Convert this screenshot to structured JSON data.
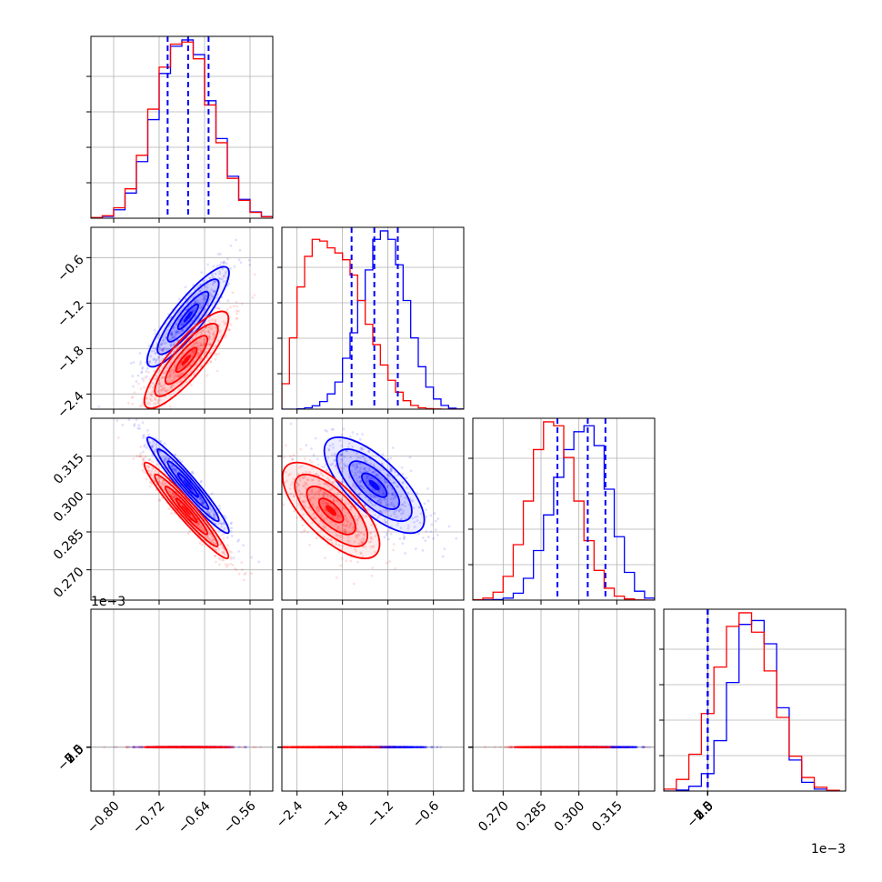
{
  "colors": {
    "series_a": "#0000ff",
    "series_b": "#ff0000",
    "grid": "#b0b0b0",
    "axes": "#000000"
  },
  "chart_data": {
    "type": "corner",
    "description_grid": "4x4 lower-triangular corner plot: 1D histograms on diagonal, 2D scatter+density contours below",
    "parameters": [
      {
        "id": "p0",
        "range": [
          -0.84,
          -0.52
        ],
        "ticks": [
          -0.8,
          -0.72,
          -0.64,
          -0.56
        ],
        "tick_labels": [
          "−0.80",
          "−0.72",
          "−0.64",
          "−0.56"
        ]
      },
      {
        "id": "p1",
        "range": [
          -2.6,
          -0.2
        ],
        "ticks": [
          -2.4,
          -1.8,
          -1.2,
          -0.6
        ],
        "tick_labels": [
          "−2.4",
          "−1.8",
          "−1.2",
          "−0.6"
        ]
      },
      {
        "id": "p2",
        "range": [
          0.258,
          0.33
        ],
        "ticks": [
          0.27,
          0.285,
          0.3,
          0.315
        ],
        "tick_labels": [
          "0.270",
          "0.285",
          "0.300",
          "0.315"
        ]
      },
      {
        "id": "p3",
        "range": [
          -2.8,
          8.8
        ],
        "ticks": [
          -2.5,
          0.0,
          2.5,
          5.0,
          7.5
        ],
        "tick_labels": [
          "−2.5",
          "0.0",
          "2.5",
          "5.0",
          "7.5"
        ],
        "offset_label": "1e−3",
        "scale": 0.001
      }
    ],
    "series": [
      {
        "name": "",
        "color": "#0000ff",
        "means": [
          -0.669,
          -1.38,
          0.3035,
          3.5
        ],
        "sds": [
          0.036,
          0.33,
          0.0095,
          1.1
        ],
        "correlations": {
          "0_1": 0.88,
          "0_2": -0.96,
          "1_2": -0.72,
          "0_3": -0.3,
          "1_3": -0.55,
          "2_3": 0.45
        },
        "quantiles": [
          [
            -0.705,
            -0.669,
            -0.633
          ],
          [
            -1.68,
            -1.38,
            -1.07
          ],
          [
            0.2915,
            0.3035,
            0.3105
          ],
          [
            2.55,
            3.5,
            4.45
          ]
        ]
      },
      {
        "name": "",
        "color": "#ff0000",
        "means": [
          -0.672,
          -1.95,
          0.2935,
          2.7
        ],
        "sds": [
          0.037,
          0.32,
          0.0095,
          1.4
        ],
        "correlations": {
          "0_1": 0.85,
          "0_2": -0.96,
          "1_2": -0.7,
          "0_3": -0.35,
          "1_3": 0.35,
          "2_3": 0.3
        },
        "quantiles": null
      }
    ],
    "histograms": {
      "p0": {
        "bin_edges": [
          -0.84,
          -0.82,
          -0.8,
          -0.78,
          -0.76,
          -0.74,
          -0.72,
          -0.7,
          -0.68,
          -0.66,
          -0.64,
          -0.62,
          -0.6,
          -0.58,
          -0.56,
          -0.54,
          -0.52
        ],
        "series_a": [
          2,
          9,
          40,
          120,
          270,
          470,
          690,
          820,
          850,
          780,
          560,
          380,
          200,
          90,
          30,
          8
        ],
        "series_b": [
          3,
          12,
          50,
          140,
          300,
          520,
          720,
          830,
          840,
          760,
          540,
          360,
          190,
          85,
          28,
          7
        ]
      },
      "p1": {
        "bin_edges": [
          -2.6,
          -2.5,
          -2.4,
          -2.3,
          -2.2,
          -2.1,
          -2.0,
          -1.9,
          -1.8,
          -1.7,
          -1.6,
          -1.5,
          -1.4,
          -1.3,
          -1.2,
          -1.1,
          -1.0,
          -0.9,
          -0.8,
          -0.7,
          -0.6,
          -0.5,
          -0.4,
          -0.3,
          -0.2
        ],
        "series_a": [
          0,
          0,
          2,
          8,
          20,
          45,
          90,
          160,
          300,
          450,
          640,
          820,
          1000,
          1050,
          1000,
          850,
          640,
          420,
          250,
          130,
          60,
          22,
          6,
          1
        ],
        "series_b": [
          150,
          420,
          720,
          900,
          1000,
          990,
          950,
          920,
          880,
          790,
          640,
          500,
          380,
          260,
          170,
          100,
          50,
          22,
          8,
          3,
          1,
          0,
          0,
          0
        ]
      },
      "p2": {
        "bin_edges": [
          0.258,
          0.262,
          0.266,
          0.27,
          0.274,
          0.278,
          0.282,
          0.286,
          0.29,
          0.294,
          0.298,
          0.302,
          0.306,
          0.31,
          0.314,
          0.318,
          0.322,
          0.326,
          0.33
        ],
        "series_a": [
          0,
          1,
          3,
          10,
          35,
          110,
          250,
          430,
          620,
          760,
          850,
          880,
          780,
          560,
          320,
          140,
          45,
          10
        ],
        "series_b": [
          2,
          10,
          40,
          120,
          280,
          500,
          760,
          900,
          880,
          720,
          500,
          300,
          150,
          60,
          20,
          6,
          1,
          0
        ]
      },
      "p3": {
        "bin_edges": [
          -2.8,
          -2.0,
          -1.2,
          -0.4,
          0.4,
          1.2,
          2.0,
          2.8,
          3.6,
          4.4,
          5.2,
          6.0,
          6.8,
          7.6,
          8.4
        ],
        "series_a": [
          0,
          5,
          25,
          90,
          260,
          560,
          860,
          880,
          760,
          430,
          160,
          45,
          10,
          1
        ],
        "series_b": [
          10,
          60,
          190,
          400,
          640,
          850,
          920,
          820,
          620,
          380,
          180,
          70,
          20,
          4
        ]
      }
    }
  }
}
